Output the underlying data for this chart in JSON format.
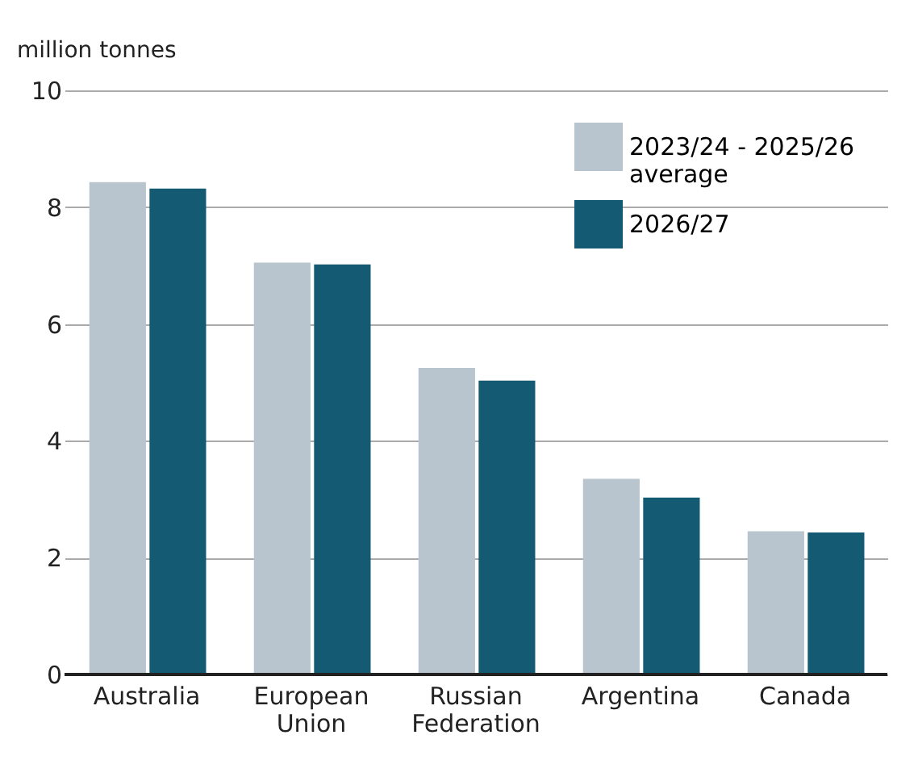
{
  "chart_data": {
    "type": "bar",
    "ylabel": "million tonnes",
    "categories": [
      "Australia",
      "European Union",
      "Russian Federation",
      "Argentina",
      "Canada"
    ],
    "series": [
      {
        "name": "2023/24 - 2025/26 average",
        "color": "#b8c5ce",
        "values": [
          8.43,
          7.05,
          5.25,
          3.35,
          2.45
        ]
      },
      {
        "name": "2026/27",
        "color": "#135a72",
        "values": [
          8.32,
          7.02,
          5.03,
          3.03,
          2.43
        ]
      }
    ],
    "ylim": [
      0,
      10
    ],
    "yticks": [
      0,
      2,
      4,
      6,
      8,
      10
    ],
    "grid": "y",
    "legend": "top right"
  }
}
